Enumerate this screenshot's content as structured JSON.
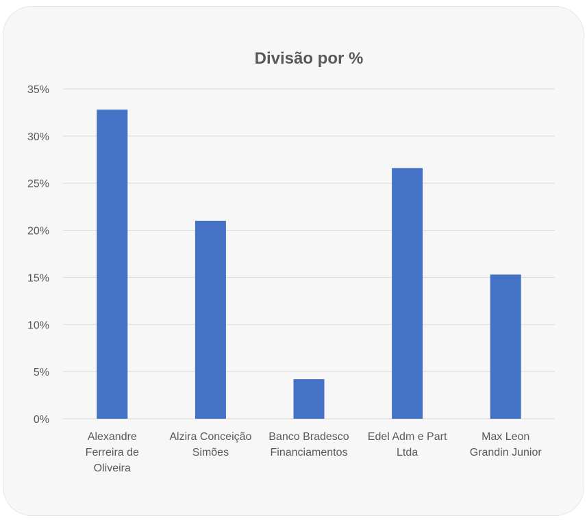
{
  "chart_data": {
    "type": "bar",
    "title": "Divisão por %",
    "xlabel": "",
    "ylabel": "",
    "ylim": [
      0,
      35
    ],
    "yticks": [
      "0%",
      "5%",
      "10%",
      "15%",
      "20%",
      "25%",
      "30%",
      "35%"
    ],
    "categories": [
      [
        "Alexandre",
        "Ferreira de",
        "Oliveira"
      ],
      [
        "Alzira Conceição",
        "Simões"
      ],
      [
        "Banco Bradesco",
        "Financiamentos"
      ],
      [
        "Edel Adm e Part",
        "Ltda"
      ],
      [
        "Max Leon",
        "Grandin Junior"
      ]
    ],
    "values": [
      32.8,
      21.0,
      4.2,
      26.6,
      15.3
    ],
    "grid": true,
    "legend": "none",
    "colors": {
      "bar": "#4472c4",
      "grid": "#d9d9d9",
      "text": "#595959",
      "background": "#f7f7f7"
    }
  }
}
